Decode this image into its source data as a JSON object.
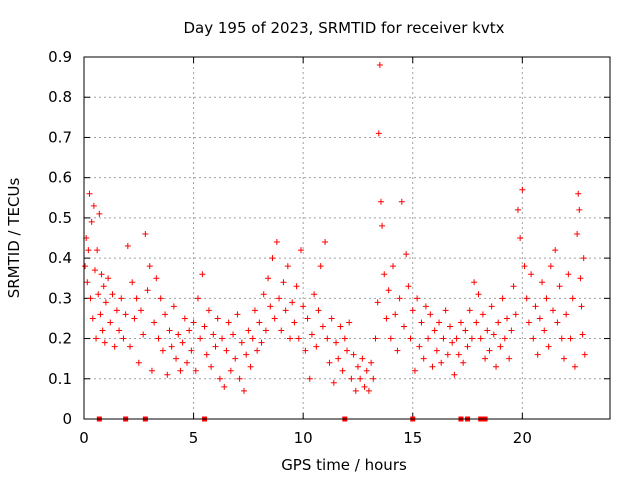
{
  "chart_data": {
    "type": "scatter",
    "title": "Day 195 of 2023, SRMTID for receiver kvtx",
    "xlabel": "GPS time / hours",
    "ylabel": "SRMTID / TECUs",
    "xlim": [
      0,
      24
    ],
    "ylim": [
      0,
      0.9
    ],
    "xticks": [
      0,
      5,
      10,
      15,
      20
    ],
    "yticks": [
      0,
      0.1,
      0.2,
      0.3,
      0.4,
      0.5,
      0.6,
      0.7,
      0.8,
      0.9
    ],
    "xtick_labels": [
      "0",
      "5",
      "10",
      "15",
      "20"
    ],
    "ytick_labels": [
      "0",
      "0.1",
      "0.2",
      "0.3",
      "0.4",
      "0.5",
      "0.6",
      "0.7",
      "0.8",
      "0.9"
    ],
    "grid": true,
    "marker": "plus",
    "color": "#ff0000",
    "series": [
      {
        "name": "SRMTID",
        "points": [
          [
            0.05,
            0.38
          ],
          [
            0.1,
            0.45
          ],
          [
            0.15,
            0.34
          ],
          [
            0.2,
            0.42
          ],
          [
            0.25,
            0.56
          ],
          [
            0.3,
            0.3
          ],
          [
            0.35,
            0.49
          ],
          [
            0.4,
            0.25
          ],
          [
            0.45,
            0.53
          ],
          [
            0.5,
            0.37
          ],
          [
            0.55,
            0.2
          ],
          [
            0.6,
            0.42
          ],
          [
            0.65,
            0.31
          ],
          [
            0.7,
            0.51
          ],
          [
            0.75,
            0.26
          ],
          [
            0.8,
            0.36
          ],
          [
            0.85,
            0.22
          ],
          [
            0.9,
            0.33
          ],
          [
            0.95,
            0.19
          ],
          [
            1.0,
            0.29
          ],
          [
            1.1,
            0.35
          ],
          [
            1.2,
            0.24
          ],
          [
            1.3,
            0.31
          ],
          [
            1.4,
            0.18
          ],
          [
            1.5,
            0.27
          ],
          [
            1.6,
            0.22
          ],
          [
            1.7,
            0.3
          ],
          [
            1.8,
            0.2
          ],
          [
            1.9,
            0.26
          ],
          [
            2.0,
            0.43
          ],
          [
            2.1,
            0.18
          ],
          [
            2.2,
            0.34
          ],
          [
            2.3,
            0.25
          ],
          [
            2.4,
            0.3
          ],
          [
            2.5,
            0.14
          ],
          [
            2.6,
            0.27
          ],
          [
            2.7,
            0.21
          ],
          [
            2.8,
            0.46
          ],
          [
            2.9,
            0.32
          ],
          [
            3.0,
            0.38
          ],
          [
            3.1,
            0.12
          ],
          [
            3.2,
            0.24
          ],
          [
            3.3,
            0.35
          ],
          [
            3.4,
            0.2
          ],
          [
            3.5,
            0.3
          ],
          [
            3.6,
            0.17
          ],
          [
            3.7,
            0.26
          ],
          [
            3.8,
            0.11
          ],
          [
            3.9,
            0.22
          ],
          [
            4.0,
            0.18
          ],
          [
            4.1,
            0.28
          ],
          [
            4.2,
            0.15
          ],
          [
            4.3,
            0.21
          ],
          [
            4.4,
            0.12
          ],
          [
            4.5,
            0.19
          ],
          [
            4.6,
            0.25
          ],
          [
            4.7,
            0.14
          ],
          [
            4.8,
            0.22
          ],
          [
            4.9,
            0.17
          ],
          [
            5.0,
            0.24
          ],
          [
            5.1,
            0.12
          ],
          [
            5.2,
            0.3
          ],
          [
            5.3,
            0.2
          ],
          [
            5.4,
            0.36
          ],
          [
            5.5,
            0.23
          ],
          [
            5.6,
            0.16
          ],
          [
            5.7,
            0.27
          ],
          [
            5.8,
            0.13
          ],
          [
            5.9,
            0.21
          ],
          [
            6.0,
            0.18
          ],
          [
            6.1,
            0.25
          ],
          [
            6.2,
            0.1
          ],
          [
            6.3,
            0.2
          ],
          [
            6.4,
            0.08
          ],
          [
            6.5,
            0.17
          ],
          [
            6.6,
            0.24
          ],
          [
            6.7,
            0.12
          ],
          [
            6.8,
            0.21
          ],
          [
            6.9,
            0.15
          ],
          [
            7.0,
            0.26
          ],
          [
            7.1,
            0.1
          ],
          [
            7.2,
            0.19
          ],
          [
            7.3,
            0.07
          ],
          [
            7.4,
            0.16
          ],
          [
            7.5,
            0.22
          ],
          [
            7.6,
            0.13
          ],
          [
            7.7,
            0.2
          ],
          [
            7.8,
            0.27
          ],
          [
            7.9,
            0.17
          ],
          [
            8.0,
            0.24
          ],
          [
            8.1,
            0.19
          ],
          [
            8.2,
            0.31
          ],
          [
            8.3,
            0.22
          ],
          [
            8.4,
            0.35
          ],
          [
            8.5,
            0.28
          ],
          [
            8.6,
            0.4
          ],
          [
            8.7,
            0.25
          ],
          [
            8.8,
            0.44
          ],
          [
            8.9,
            0.3
          ],
          [
            9.0,
            0.22
          ],
          [
            9.1,
            0.34
          ],
          [
            9.2,
            0.27
          ],
          [
            9.3,
            0.38
          ],
          [
            9.4,
            0.2
          ],
          [
            9.5,
            0.29
          ],
          [
            9.6,
            0.24
          ],
          [
            9.7,
            0.33
          ],
          [
            9.8,
            0.2
          ],
          [
            9.9,
            0.42
          ],
          [
            10.0,
            0.28
          ],
          [
            10.1,
            0.17
          ],
          [
            10.2,
            0.25
          ],
          [
            10.3,
            0.1
          ],
          [
            10.4,
            0.21
          ],
          [
            10.5,
            0.31
          ],
          [
            10.6,
            0.18
          ],
          [
            10.7,
            0.27
          ],
          [
            10.8,
            0.38
          ],
          [
            10.9,
            0.23
          ],
          [
            11.0,
            0.44
          ],
          [
            11.1,
            0.2
          ],
          [
            11.2,
            0.14
          ],
          [
            11.3,
            0.25
          ],
          [
            11.4,
            0.09
          ],
          [
            11.5,
            0.19
          ],
          [
            11.6,
            0.15
          ],
          [
            11.7,
            0.23
          ],
          [
            11.8,
            0.12
          ],
          [
            11.9,
            0.2
          ],
          [
            12.0,
            0.17
          ],
          [
            12.1,
            0.24
          ],
          [
            12.2,
            0.1
          ],
          [
            12.3,
            0.16
          ],
          [
            12.4,
            0.07
          ],
          [
            12.5,
            0.13
          ],
          [
            12.6,
            0.1
          ],
          [
            12.7,
            0.15
          ],
          [
            12.8,
            0.08
          ],
          [
            12.9,
            0.12
          ],
          [
            13.0,
            0.07
          ],
          [
            13.1,
            0.14
          ],
          [
            13.2,
            0.1
          ],
          [
            13.3,
            0.2
          ],
          [
            13.4,
            0.29
          ],
          [
            13.45,
            0.71
          ],
          [
            13.5,
            0.88
          ],
          [
            13.55,
            0.54
          ],
          [
            13.6,
            0.48
          ],
          [
            13.7,
            0.36
          ],
          [
            13.8,
            0.25
          ],
          [
            13.9,
            0.32
          ],
          [
            14.0,
            0.2
          ],
          [
            14.1,
            0.38
          ],
          [
            14.2,
            0.26
          ],
          [
            14.3,
            0.17
          ],
          [
            14.4,
            0.3
          ],
          [
            14.5,
            0.54
          ],
          [
            14.6,
            0.23
          ],
          [
            14.7,
            0.41
          ],
          [
            14.8,
            0.33
          ],
          [
            14.9,
            0.2
          ],
          [
            15.0,
            0.27
          ],
          [
            15.1,
            0.12
          ],
          [
            15.2,
            0.3
          ],
          [
            15.3,
            0.18
          ],
          [
            15.4,
            0.24
          ],
          [
            15.5,
            0.15
          ],
          [
            15.6,
            0.28
          ],
          [
            15.7,
            0.2
          ],
          [
            15.8,
            0.26
          ],
          [
            15.9,
            0.13
          ],
          [
            16.0,
            0.22
          ],
          [
            16.1,
            0.17
          ],
          [
            16.2,
            0.24
          ],
          [
            16.3,
            0.14
          ],
          [
            16.4,
            0.2
          ],
          [
            16.5,
            0.27
          ],
          [
            16.6,
            0.16
          ],
          [
            16.7,
            0.23
          ],
          [
            16.8,
            0.19
          ],
          [
            16.9,
            0.11
          ],
          [
            17.0,
            0.2
          ],
          [
            17.1,
            0.16
          ],
          [
            17.2,
            0.24
          ],
          [
            17.3,
            0.14
          ],
          [
            17.4,
            0.22
          ],
          [
            17.5,
            0.18
          ],
          [
            17.6,
            0.27
          ],
          [
            17.7,
            0.2
          ],
          [
            17.8,
            0.34
          ],
          [
            17.9,
            0.24
          ],
          [
            18.0,
            0.31
          ],
          [
            18.1,
            0.2
          ],
          [
            18.2,
            0.26
          ],
          [
            18.3,
            0.15
          ],
          [
            18.4,
            0.22
          ],
          [
            18.5,
            0.17
          ],
          [
            18.6,
            0.28
          ],
          [
            18.7,
            0.21
          ],
          [
            18.8,
            0.13
          ],
          [
            18.9,
            0.24
          ],
          [
            19.0,
            0.18
          ],
          [
            19.1,
            0.3
          ],
          [
            19.2,
            0.2
          ],
          [
            19.3,
            0.25
          ],
          [
            19.4,
            0.15
          ],
          [
            19.5,
            0.22
          ],
          [
            19.6,
            0.33
          ],
          [
            19.7,
            0.26
          ],
          [
            19.8,
            0.52
          ],
          [
            19.9,
            0.45
          ],
          [
            20.0,
            0.57
          ],
          [
            20.1,
            0.38
          ],
          [
            20.2,
            0.3
          ],
          [
            20.3,
            0.24
          ],
          [
            20.4,
            0.36
          ],
          [
            20.5,
            0.2
          ],
          [
            20.6,
            0.28
          ],
          [
            20.7,
            0.16
          ],
          [
            20.8,
            0.25
          ],
          [
            20.9,
            0.34
          ],
          [
            21.0,
            0.22
          ],
          [
            21.1,
            0.3
          ],
          [
            21.2,
            0.18
          ],
          [
            21.3,
            0.38
          ],
          [
            21.4,
            0.27
          ],
          [
            21.5,
            0.42
          ],
          [
            21.6,
            0.24
          ],
          [
            21.7,
            0.33
          ],
          [
            21.8,
            0.2
          ],
          [
            21.9,
            0.15
          ],
          [
            22.0,
            0.26
          ],
          [
            22.1,
            0.36
          ],
          [
            22.2,
            0.2
          ],
          [
            22.3,
            0.3
          ],
          [
            22.4,
            0.13
          ],
          [
            22.5,
            0.46
          ],
          [
            22.55,
            0.56
          ],
          [
            22.6,
            0.52
          ],
          [
            22.65,
            0.35
          ],
          [
            22.7,
            0.28
          ],
          [
            22.75,
            0.21
          ],
          [
            22.8,
            0.4
          ],
          [
            22.85,
            0.16
          ]
        ]
      },
      {
        "name": "SRMTID zero values",
        "points": [
          [
            0.7,
            0
          ],
          [
            1.9,
            0
          ],
          [
            2.8,
            0
          ],
          [
            5.5,
            0
          ],
          [
            11.9,
            0
          ],
          [
            15.0,
            0
          ],
          [
            17.2,
            0
          ],
          [
            17.5,
            0
          ],
          [
            18.1,
            0
          ],
          [
            18.3,
            0
          ]
        ]
      }
    ]
  }
}
